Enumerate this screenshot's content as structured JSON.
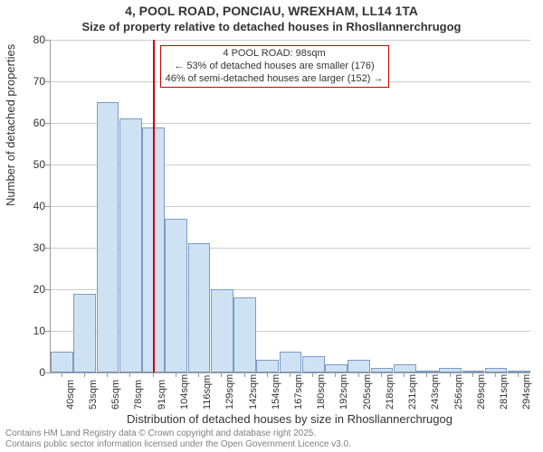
{
  "title_main": "4, POOL ROAD, PONCIAU, WREXHAM, LL14 1TA",
  "title_sub": "Size of property relative to detached houses in Rhosllannerchrugog",
  "y_axis_label": "Number of detached properties",
  "x_axis_label": "Distribution of detached houses by size in Rhosllannerchrugog",
  "footer_line1": "Contains HM Land Registry data © Crown copyright and database right 2025.",
  "footer_line2": "Contains public sector information licensed under the Open Government Licence v3.0.",
  "annotation_line1": "4 POOL ROAD: 98sqm",
  "annotation_line2": "← 53% of detached houses are smaller (176)",
  "annotation_line3": "46% of semi-detached houses are larger (152) →",
  "chart": {
    "type": "bar",
    "ylim": [
      0,
      80
    ],
    "ytick_step": 10,
    "bar_fill": "#cfe2f3",
    "bar_border": "#7a9cc6",
    "grid_color": "#cccccc",
    "axis_color": "#999999",
    "ref_line_color": "#cc0000",
    "ref_line_value": 98,
    "annotation_border": "#cc0000",
    "categories": [
      "40sqm",
      "53sqm",
      "65sqm",
      "78sqm",
      "91sqm",
      "104sqm",
      "116sqm",
      "129sqm",
      "142sqm",
      "154sqm",
      "167sqm",
      "180sqm",
      "192sqm",
      "205sqm",
      "218sqm",
      "231sqm",
      "243sqm",
      "256sqm",
      "269sqm",
      "281sqm",
      "294sqm"
    ],
    "values": [
      5,
      19,
      65,
      61,
      59,
      37,
      31,
      20,
      18,
      3,
      5,
      4,
      2,
      3,
      1,
      2,
      0,
      1,
      0,
      1,
      0
    ]
  }
}
